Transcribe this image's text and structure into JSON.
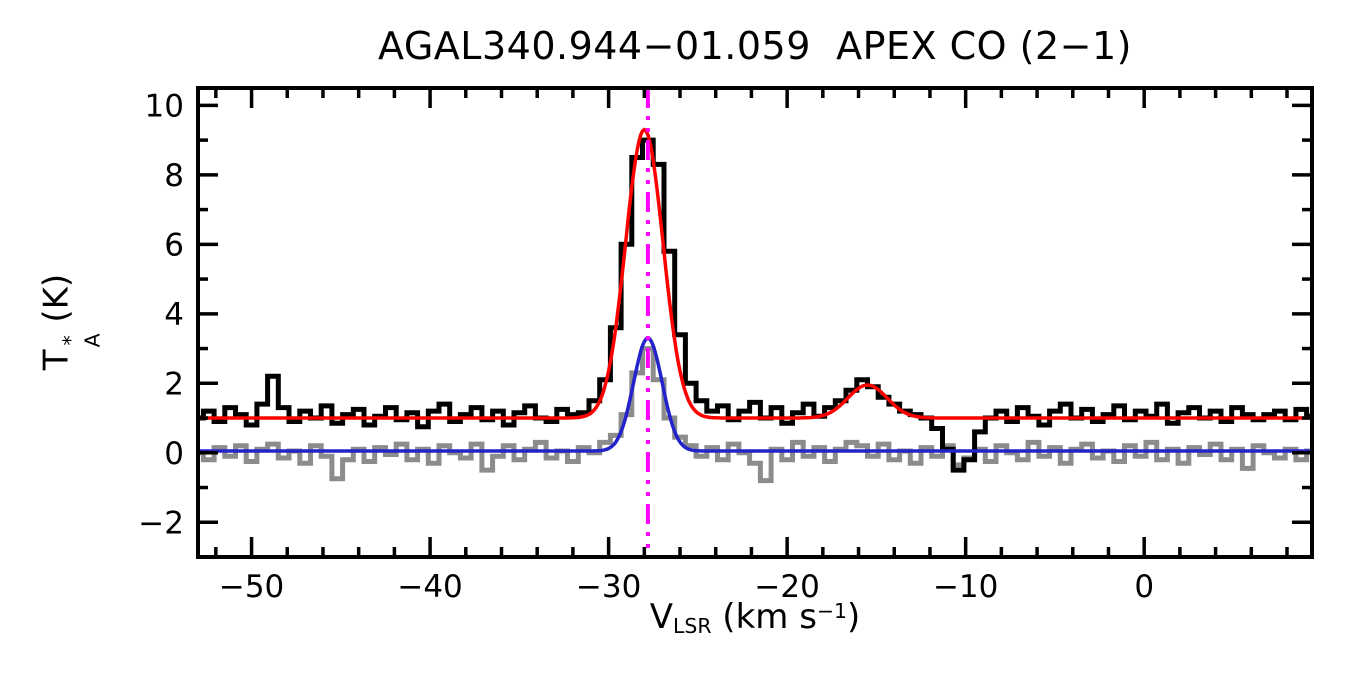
{
  "chart_data": {
    "type": "line",
    "subtype": "spectrum-histogram-with-gaussian-fits",
    "title": "AGAL340.944−01.059  APEX CO (2−1)",
    "xlabel_parts": {
      "base": "V",
      "sub": "LSR",
      "mid": " (km s",
      "sup": "−1",
      "end": ")"
    },
    "ylabel_parts": {
      "base": "T",
      "sup": "*",
      "sub": "A",
      "rest": " (K)"
    },
    "xlim": [
      -53,
      9.4
    ],
    "ylim": [
      -3,
      10.5
    ],
    "x_major_ticks": [
      -50,
      -40,
      -30,
      -20,
      -10,
      0
    ],
    "x_tick_labels": [
      "−50",
      "−40",
      "−30",
      "−20",
      "−10",
      "0"
    ],
    "x_minor_step": 2,
    "y_major_ticks": [
      -2,
      0,
      2,
      4,
      6,
      8,
      10
    ],
    "y_tick_labels": [
      "−2",
      "0",
      "2",
      "4",
      "6",
      "8",
      "10"
    ],
    "y_minor_step": 1,
    "grid": false,
    "legend": "none",
    "frame_color": "#000000",
    "x": [
      -53.0,
      -52.4,
      -51.8,
      -51.2,
      -50.6,
      -50.0,
      -49.4,
      -48.8,
      -48.2,
      -47.6,
      -47.0,
      -46.4,
      -45.8,
      -45.2,
      -44.6,
      -44.0,
      -43.4,
      -42.8,
      -42.2,
      -41.6,
      -41.0,
      -40.4,
      -39.8,
      -39.2,
      -38.6,
      -38.0,
      -37.4,
      -36.8,
      -36.2,
      -35.6,
      -35.0,
      -34.4,
      -33.8,
      -33.2,
      -32.6,
      -32.0,
      -31.4,
      -30.8,
      -30.2,
      -29.6,
      -29.0,
      -28.4,
      -27.8,
      -27.2,
      -26.6,
      -26.0,
      -25.4,
      -24.8,
      -24.2,
      -23.6,
      -23.0,
      -22.4,
      -21.8,
      -21.2,
      -20.6,
      -20.0,
      -19.4,
      -18.8,
      -18.2,
      -17.6,
      -17.0,
      -16.4,
      -15.8,
      -15.2,
      -14.6,
      -14.0,
      -13.4,
      -12.8,
      -12.2,
      -11.6,
      -11.0,
      -10.4,
      -9.8,
      -9.2,
      -8.6,
      -8.0,
      -7.4,
      -6.8,
      -6.2,
      -5.6,
      -5.0,
      -4.4,
      -3.8,
      -3.2,
      -2.6,
      -2.0,
      -1.4,
      -0.8,
      -0.2,
      0.4,
      1.0,
      1.6,
      2.2,
      2.8,
      3.4,
      4.0,
      4.6,
      5.2,
      5.8,
      6.4,
      7.0,
      7.6,
      8.2,
      8.8,
      9.4
    ],
    "series": [
      {
        "name": "black-spectrum",
        "style": "histogram",
        "color": "#000000",
        "line_width": 5,
        "baseline_offset": 1.0,
        "values": [
          1.0,
          1.2,
          0.9,
          1.3,
          1.1,
          0.8,
          1.4,
          2.2,
          1.3,
          0.9,
          1.2,
          1.0,
          1.35,
          0.85,
          1.1,
          1.25,
          0.8,
          1.05,
          1.3,
          0.95,
          1.15,
          0.75,
          1.2,
          1.4,
          0.9,
          1.1,
          1.3,
          0.95,
          1.2,
          0.8,
          1.15,
          1.35,
          1.0,
          0.9,
          1.25,
          1.1,
          1.15,
          1.5,
          2.1,
          3.6,
          6.0,
          8.5,
          9.0,
          8.3,
          5.8,
          3.4,
          2.0,
          1.5,
          1.2,
          1.35,
          0.95,
          1.2,
          1.45,
          1.0,
          1.3,
          0.85,
          1.15,
          1.4,
          1.05,
          1.3,
          1.5,
          1.8,
          2.1,
          1.9,
          1.6,
          1.4,
          1.2,
          1.1,
          1.0,
          0.7,
          0.1,
          -0.5,
          -0.2,
          0.6,
          1.0,
          1.2,
          0.9,
          1.3,
          1.05,
          0.8,
          1.2,
          1.4,
          1.0,
          1.25,
          0.9,
          1.1,
          1.35,
          0.95,
          1.2,
          1.05,
          1.4,
          0.85,
          1.15,
          1.3,
          1.0,
          1.2,
          0.9,
          1.3,
          1.1,
          0.95,
          1.1,
          1.2,
          0.95,
          1.25,
          1.05
        ]
      },
      {
        "name": "gray-spectrum",
        "style": "histogram",
        "color": "#8c8c8c",
        "line_width": 5,
        "baseline_offset": 0.0,
        "values": [
          0.0,
          -0.2,
          0.15,
          -0.1,
          0.2,
          -0.25,
          0.1,
          0.25,
          -0.15,
          0.05,
          -0.3,
          0.2,
          -0.1,
          -0.75,
          -0.2,
          0.1,
          -0.25,
          0.15,
          -0.05,
          0.25,
          -0.2,
          0.1,
          -0.3,
          0.2,
          0.0,
          -0.15,
          0.25,
          -0.5,
          -0.1,
          0.2,
          -0.2,
          0.1,
          0.3,
          -0.15,
          0.05,
          -0.25,
          0.15,
          0.0,
          0.3,
          0.5,
          1.1,
          2.3,
          3.0,
          2.1,
          1.0,
          0.45,
          0.2,
          -0.1,
          0.15,
          -0.2,
          0.25,
          0.0,
          -0.3,
          -0.8,
          0.1,
          -0.2,
          0.3,
          -0.1,
          0.15,
          -0.25,
          0.1,
          0.3,
          0.2,
          -0.1,
          0.25,
          -0.2,
          0.05,
          -0.3,
          0.15,
          -0.1,
          0.2,
          -0.35,
          -0.15,
          0.1,
          -0.25,
          0.2,
          0.0,
          -0.2,
          0.3,
          -0.1,
          0.15,
          -0.3,
          0.1,
          0.25,
          -0.15,
          0.05,
          -0.25,
          0.2,
          -0.1,
          0.3,
          -0.2,
          0.1,
          -0.3,
          0.15,
          -0.05,
          0.25,
          -0.2,
          0.1,
          -0.45,
          0.2,
          0.0,
          -0.15,
          0.1,
          -0.2,
          0.05
        ]
      }
    ],
    "fits": [
      {
        "name": "red-gaussian-fit",
        "color": "#ff0000",
        "line_width": 3.5,
        "baseline": 1.0,
        "gaussians": [
          {
            "center": -28.0,
            "amplitude": 8.3,
            "sigma": 1.05
          },
          {
            "center": -15.5,
            "amplitude": 0.95,
            "sigma": 1.1
          }
        ]
      },
      {
        "name": "blue-gaussian-fit",
        "color": "#2323cc",
        "line_width": 3.5,
        "baseline": 0.05,
        "gaussians": [
          {
            "center": -27.8,
            "amplitude": 3.25,
            "sigma": 0.8
          }
        ]
      }
    ],
    "vline": {
      "x": -27.8,
      "color": "#ff00ff",
      "line_width": 4,
      "style": "dash-dot-dot"
    }
  }
}
